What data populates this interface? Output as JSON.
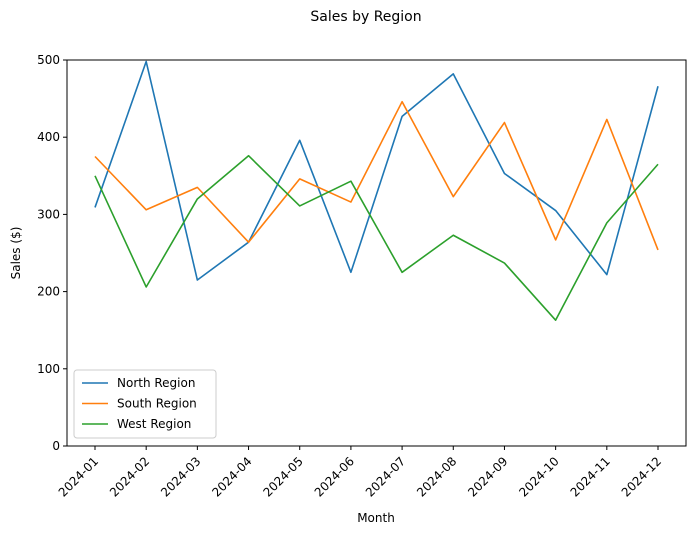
{
  "chart_data": {
    "type": "line",
    "title": "Sales by Region",
    "xlabel": "Month",
    "ylabel": "Sales ($)",
    "categories": [
      "2024-01",
      "2024-02",
      "2024-03",
      "2024-04",
      "2024-05",
      "2024-06",
      "2024-07",
      "2024-08",
      "2024-09",
      "2024-10",
      "2024-11",
      "2024-12"
    ],
    "ylim": [
      0,
      500
    ],
    "yticks": [
      0,
      100,
      200,
      300,
      400,
      500
    ],
    "grid": false,
    "legend_position": "lower-left",
    "series": [
      {
        "name": "North Region",
        "color": "#1f77b4",
        "values": [
          309,
          498,
          215,
          264,
          396,
          225,
          427,
          482,
          353,
          305,
          222,
          466
        ]
      },
      {
        "name": "South Region",
        "color": "#ff7f0e",
        "values": [
          375,
          306,
          335,
          264,
          346,
          316,
          446,
          323,
          419,
          267,
          423,
          254
        ]
      },
      {
        "name": "West Region",
        "color": "#2ca02c",
        "values": [
          350,
          206,
          320,
          376,
          311,
          343,
          225,
          273,
          237,
          163,
          289,
          365
        ]
      }
    ]
  }
}
